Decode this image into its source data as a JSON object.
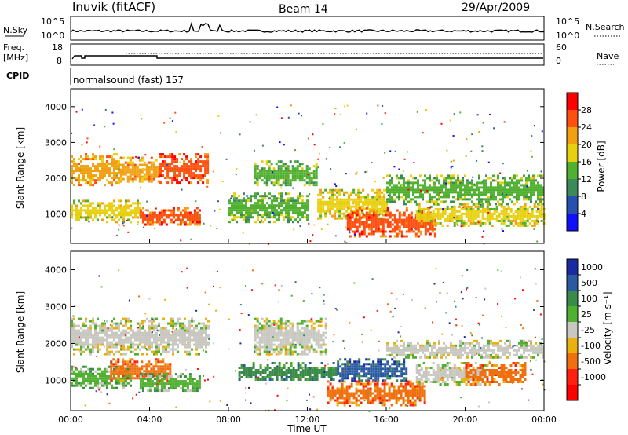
{
  "header": {
    "station": "Inuvik (fitACF)",
    "beam": "Beam 14",
    "date": "29/Apr/2009"
  },
  "noise_panel": {
    "left_label": "N.Sky",
    "left_ticks": [
      "10^5",
      "10^0"
    ],
    "right_ticks": [
      "10^5",
      "10^0"
    ],
    "right_label": "N.Search"
  },
  "freq_panel": {
    "label_line1": "Freq.",
    "label_line2": "[MHz]",
    "left_ticks": [
      "18",
      "8"
    ],
    "right_ticks": [
      "60",
      "0"
    ],
    "right_label": "Nave"
  },
  "cpid_panel": {
    "label": "CPID",
    "value": "normalsound (fast) 157"
  },
  "axes": {
    "x_label": "Time UT",
    "x_ticks": [
      "00:00",
      "04:00",
      "08:00",
      "12:00",
      "16:00",
      "20:00",
      "00:00"
    ],
    "y_label": "Slant Range [km]",
    "y_ticks": [
      "1000",
      "2000",
      "3000",
      "4000"
    ]
  },
  "power_scale": {
    "title": "Power [dB]",
    "ticks": [
      "4",
      "8",
      "12",
      "16",
      "20",
      "24",
      "28"
    ],
    "colors": [
      "#1010ff",
      "#2850b0",
      "#3c8a5a",
      "#50b030",
      "#e8d010",
      "#f0a010",
      "#ff5010",
      "#ff0000"
    ]
  },
  "velocity_scale": {
    "title": "Velocity [m s⁻¹]",
    "ticks": [
      "1000",
      "500",
      "100",
      "25",
      "-25",
      "-100",
      "-500",
      "-1000"
    ],
    "colors": [
      "#1a2aa0",
      "#2a5aa0",
      "#3a8a4a",
      "#50b030",
      "#c8c8c0",
      "#e8b010",
      "#f07010",
      "#ff2010",
      "#ff0000"
    ]
  },
  "chart_data": [
    {
      "type": "heatmap",
      "name": "Power",
      "xlabel": "Time UT",
      "ylabel": "Slant Range [km]",
      "x_range": [
        "00:00",
        "24:00"
      ],
      "y_range": [
        180,
        4500
      ],
      "bands": [
        {
          "t0": 0.0,
          "t1": 2.5,
          "r0": 1800,
          "r1": 2700,
          "level": 5
        },
        {
          "t0": 2.5,
          "t1": 4.5,
          "r0": 1900,
          "r1": 2600,
          "level": 5
        },
        {
          "t0": 4.5,
          "t1": 7.0,
          "r0": 1900,
          "r1": 2700,
          "level": 6
        },
        {
          "t0": 0.0,
          "t1": 3.5,
          "r0": 800,
          "r1": 1400,
          "level": 4
        },
        {
          "t0": 3.5,
          "t1": 6.5,
          "r0": 700,
          "r1": 1200,
          "level": 6
        },
        {
          "t0": 9.3,
          "t1": 12.5,
          "r0": 1800,
          "r1": 2500,
          "level": 3
        },
        {
          "t0": 8.0,
          "t1": 12.0,
          "r0": 800,
          "r1": 1600,
          "level": 3
        },
        {
          "t0": 12.5,
          "t1": 16.0,
          "r0": 900,
          "r1": 1700,
          "level": 4
        },
        {
          "t0": 14.0,
          "t1": 18.5,
          "r0": 350,
          "r1": 1200,
          "level": 6
        },
        {
          "t0": 16.0,
          "t1": 24.0,
          "r0": 1300,
          "r1": 2100,
          "level": 3
        },
        {
          "t0": 17.5,
          "t1": 24.0,
          "r0": 700,
          "r1": 1300,
          "level": 4
        }
      ]
    },
    {
      "type": "heatmap",
      "name": "Velocity",
      "xlabel": "Time UT",
      "ylabel": "Slant Range [km]",
      "x_range": [
        "00:00",
        "24:00"
      ],
      "y_range": [
        180,
        4500
      ],
      "bands": [
        {
          "t0": 0.0,
          "t1": 7.0,
          "r0": 1700,
          "r1": 2700,
          "level": 4
        },
        {
          "t0": 0.0,
          "t1": 3.0,
          "r0": 800,
          "r1": 1400,
          "level": 3
        },
        {
          "t0": 2.0,
          "t1": 5.0,
          "r0": 1000,
          "r1": 1600,
          "level": 6
        },
        {
          "t0": 3.5,
          "t1": 6.5,
          "r0": 700,
          "r1": 1200,
          "level": 3
        },
        {
          "t0": 9.3,
          "t1": 13.0,
          "r0": 1700,
          "r1": 2700,
          "level": 4
        },
        {
          "t0": 8.5,
          "t1": 13.5,
          "r0": 1000,
          "r1": 1500,
          "level": 2
        },
        {
          "t0": 13.5,
          "t1": 17.0,
          "r0": 1000,
          "r1": 1600,
          "level": 1
        },
        {
          "t0": 13.0,
          "t1": 18.0,
          "r0": 350,
          "r1": 1000,
          "level": 6
        },
        {
          "t0": 17.5,
          "t1": 21.0,
          "r0": 900,
          "r1": 1500,
          "level": 4
        },
        {
          "t0": 20.0,
          "t1": 23.0,
          "r0": 900,
          "r1": 1500,
          "level": 6
        },
        {
          "t0": 16.0,
          "t1": 24.0,
          "r0": 1600,
          "r1": 2100,
          "level": 4
        }
      ]
    }
  ]
}
